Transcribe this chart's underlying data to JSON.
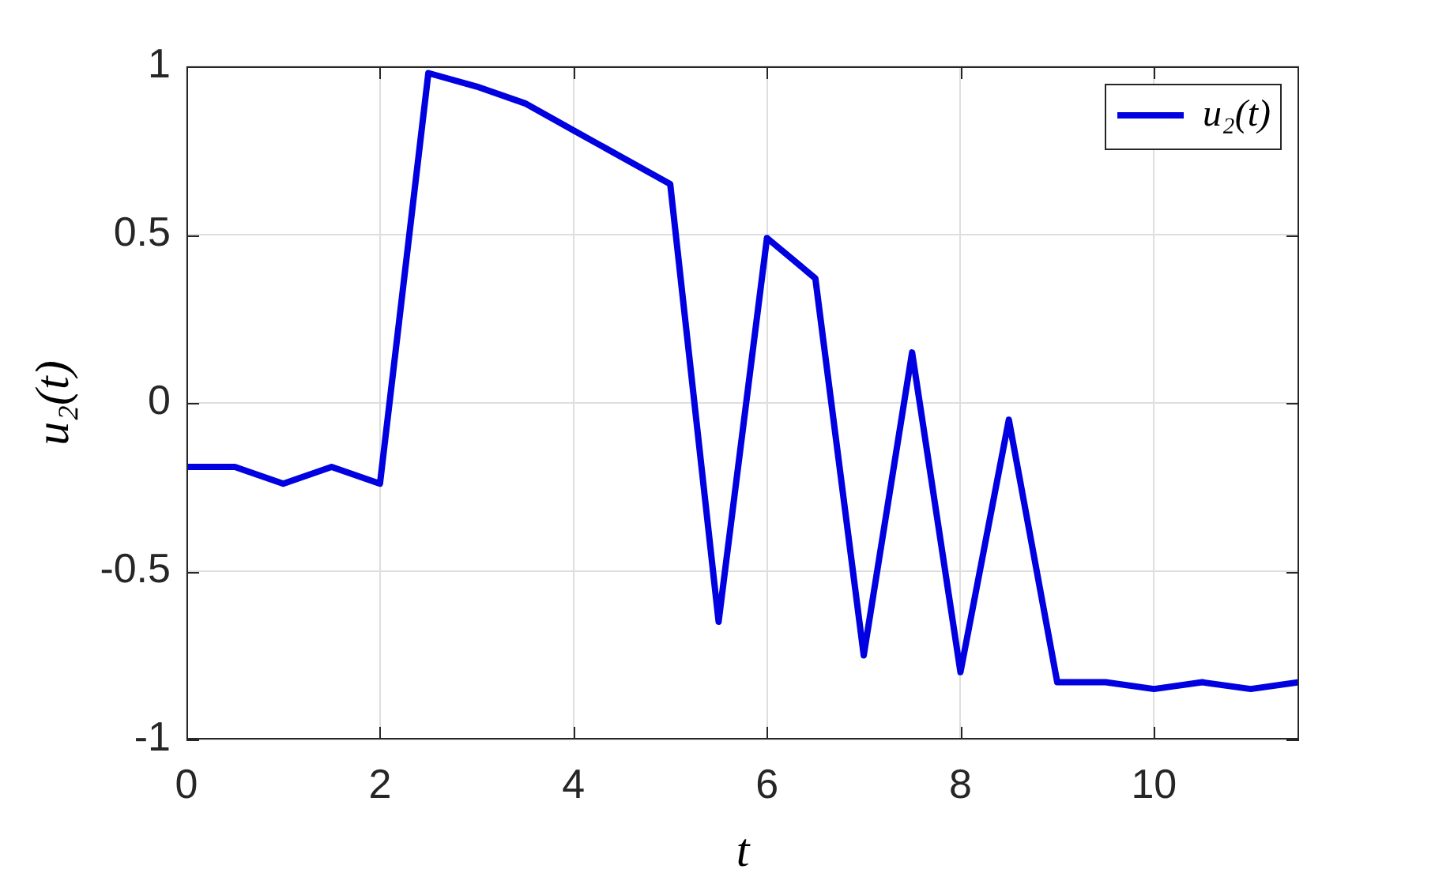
{
  "chart_data": {
    "type": "line",
    "xlabel": "t",
    "ylabel": "u₂(t)",
    "x": [
      0,
      0.5,
      1,
      1.5,
      2,
      2.5,
      3,
      3.5,
      4,
      4.5,
      5,
      5.5,
      6,
      6.5,
      7,
      7.5,
      8,
      8.5,
      9,
      9.5,
      10,
      10.5,
      11,
      11.5
    ],
    "series": [
      {
        "name": "u₂(t)",
        "color": "#0000e0",
        "values": [
          -0.19,
          -0.19,
          -0.24,
          -0.19,
          -0.24,
          0.98,
          0.94,
          0.89,
          0.81,
          0.73,
          0.65,
          -0.65,
          0.49,
          0.37,
          -0.75,
          0.15,
          -0.8,
          -0.05,
          -0.83,
          -0.83,
          -0.85,
          -0.83,
          -0.85,
          -0.83
        ]
      }
    ],
    "xlim": [
      0,
      11.5
    ],
    "ylim": [
      -1,
      1
    ],
    "xticks": [
      0,
      2,
      4,
      6,
      8,
      10
    ],
    "yticks": [
      -1,
      -0.5,
      0,
      0.5,
      1
    ],
    "grid": true,
    "legend": "top right"
  }
}
